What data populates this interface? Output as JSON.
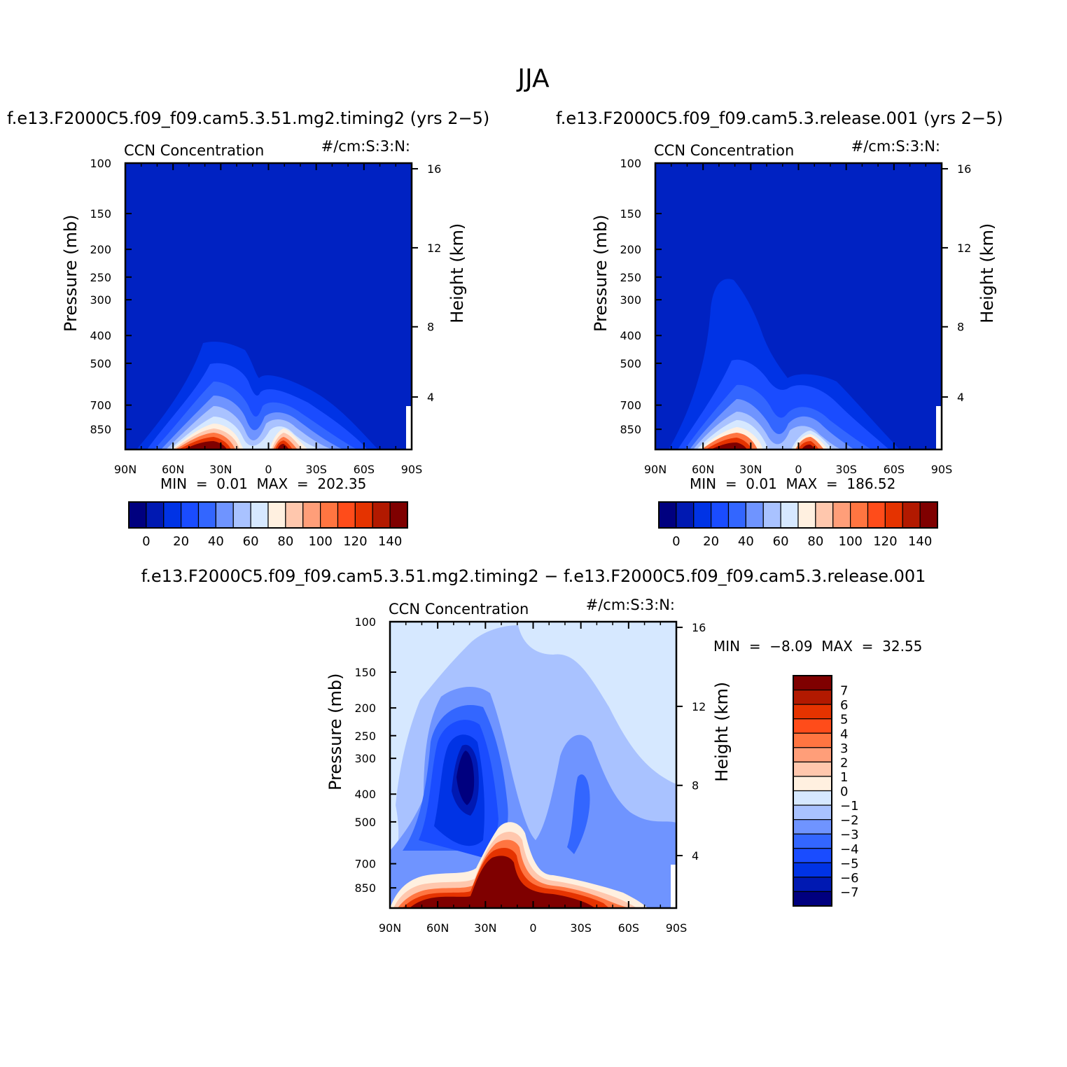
{
  "main_title": "JJA",
  "panels": [
    {
      "title": "f.e13.F2000C5.f09_f09.cam5.3.51.mg2.timing2 (yrs 2−5)",
      "left_label": "CCN Concentration",
      "right_label": "#/cm:S:3:N:",
      "min_max": "MIN =    0.01   MAX =  202.35"
    },
    {
      "title": "f.e13.F2000C5.f09_f09.cam5.3.release.001 (yrs 2−5)",
      "left_label": "CCN Concentration",
      "right_label": "#/cm:S:3:N:",
      "min_max": "MIN =    0.01   MAX =  186.52"
    },
    {
      "title": "f.e13.F2000C5.f09_f09.cam5.3.51.mg2.timing2 − f.e13.F2000C5.f09_f09.cam5.3.release.001",
      "left_label": "CCN Concentration",
      "right_label": "#/cm:S:3:N:",
      "min_max": "MIN =   −8.09   MAX =   32.55"
    }
  ],
  "axes": {
    "ylabel_left": "Pressure (mb)",
    "ylabel_right": "Height (km)",
    "pressure_ticks": [
      "100",
      "150",
      "200",
      "250",
      "300",
      "400",
      "500",
      "700",
      "850"
    ],
    "height_ticks": [
      "16",
      "12",
      "8",
      "4"
    ],
    "lat_ticks": [
      "90N",
      "60N",
      "30N",
      "0",
      "30S",
      "60S",
      "90S"
    ]
  },
  "colorbar_abs": {
    "labels": [
      "0",
      "20",
      "40",
      "60",
      "80",
      "100",
      "120",
      "140"
    ],
    "colors": [
      "#00007f",
      "#0019b2",
      "#0033e5",
      "#1a4cff",
      "#3366ff",
      "#6f94ff",
      "#a9c2ff",
      "#d6e8ff",
      "#fff0e0",
      "#ffc7ad",
      "#ff9e79",
      "#ff7541",
      "#ff4c1a",
      "#e53300",
      "#b21900",
      "#7f0000"
    ]
  },
  "colorbar_diff": {
    "labels": [
      "7",
      "6",
      "5",
      "4",
      "3",
      "2",
      "1",
      "0",
      "−1",
      "−2",
      "−3",
      "−4",
      "−5",
      "−6",
      "−7"
    ],
    "colors": [
      "#7f0000",
      "#b21900",
      "#e53300",
      "#ff4c1a",
      "#ff7541",
      "#ff9e79",
      "#ffc7ad",
      "#fff0e0",
      "#d6e8ff",
      "#a9c2ff",
      "#6f94ff",
      "#3366ff",
      "#1a4cff",
      "#0033e5",
      "#0019b2",
      "#00007f"
    ]
  },
  "chart_data": [
    {
      "type": "heatmap",
      "title": "f.e13.F2000C5.f09_f09.cam5.3.51.mg2.timing2 (yrs 2−5)",
      "variable": "CCN Concentration",
      "units": "#/cm:S:3:N:",
      "xlabel": "",
      "ylabel": "Pressure (mb)",
      "ylabel_right": "Height (km)",
      "x_ticks": [
        "90N",
        "60N",
        "30N",
        "0",
        "30S",
        "60S",
        "90S"
      ],
      "y_ticks": [
        100,
        150,
        200,
        250,
        300,
        400,
        500,
        700,
        850
      ],
      "xlim": [
        90,
        -90
      ],
      "ylim": [
        100,
        1000
      ],
      "yscale": "log",
      "contour_levels": [
        0,
        10,
        20,
        30,
        40,
        50,
        60,
        70,
        80,
        90,
        100,
        110,
        120,
        130,
        140
      ],
      "min": 0.01,
      "max": 202.35
    },
    {
      "type": "heatmap",
      "title": "f.e13.F2000C5.f09_f09.cam5.3.release.001 (yrs 2−5)",
      "variable": "CCN Concentration",
      "units": "#/cm:S:3:N:",
      "xlabel": "",
      "ylabel": "Pressure (mb)",
      "ylabel_right": "Height (km)",
      "x_ticks": [
        "90N",
        "60N",
        "30N",
        "0",
        "30S",
        "60S",
        "90S"
      ],
      "y_ticks": [
        100,
        150,
        200,
        250,
        300,
        400,
        500,
        700,
        850
      ],
      "xlim": [
        90,
        -90
      ],
      "ylim": [
        100,
        1000
      ],
      "yscale": "log",
      "contour_levels": [
        0,
        10,
        20,
        30,
        40,
        50,
        60,
        70,
        80,
        90,
        100,
        110,
        120,
        130,
        140
      ],
      "min": 0.01,
      "max": 186.52
    },
    {
      "type": "heatmap",
      "title": "f.e13.F2000C5.f09_f09.cam5.3.51.mg2.timing2 − f.e13.F2000C5.f09_f09.cam5.3.release.001",
      "variable": "CCN Concentration",
      "units": "#/cm:S:3:N:",
      "xlabel": "",
      "ylabel": "Pressure (mb)",
      "ylabel_right": "Height (km)",
      "x_ticks": [
        "90N",
        "60N",
        "30N",
        "0",
        "30S",
        "60S",
        "90S"
      ],
      "y_ticks": [
        100,
        150,
        200,
        250,
        300,
        400,
        500,
        700,
        850
      ],
      "xlim": [
        90,
        -90
      ],
      "ylim": [
        100,
        1000
      ],
      "yscale": "log",
      "contour_levels": [
        -7,
        -6,
        -5,
        -4,
        -3,
        -2,
        -1,
        0,
        1,
        2,
        3,
        4,
        5,
        6,
        7
      ],
      "min": -8.09,
      "max": 32.55
    }
  ]
}
